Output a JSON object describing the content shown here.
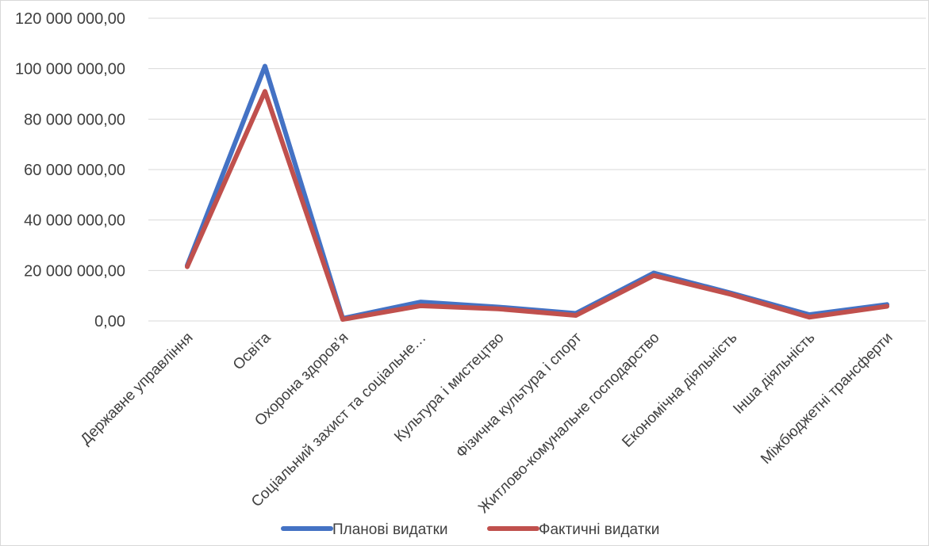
{
  "chart_data": {
    "type": "line",
    "title": "",
    "xlabel": "",
    "ylabel": "",
    "ylim": [
      0,
      120000000
    ],
    "y_ticks": [
      "0,00",
      "20 000 000,00",
      "40 000 000,00",
      "60 000 000,00",
      "80 000 000,00",
      "100 000 000,00",
      "120 000 000,00"
    ],
    "grid": "horizontal",
    "legend_position": "bottom",
    "categories": [
      "Державне управління",
      "Освіта",
      "Охорона здоров’я",
      "Соціальний захист та соціальне…",
      "Культура і мистецтво",
      "Фізична культура і спорт",
      "Житлово-комунальне господарство",
      "Економічна діяльність",
      "Інша діяльність",
      "Міжбюджетні трансферти"
    ],
    "series": [
      {
        "name": "Планові видатки",
        "color": "#4472c4",
        "values": [
          22000000,
          101000000,
          1000000,
          7500000,
          5500000,
          3000000,
          19000000,
          11000000,
          2500000,
          6500000
        ]
      },
      {
        "name": "Фактичні видатки",
        "color": "#c0504d",
        "values": [
          21500000,
          91000000,
          600000,
          6000000,
          4800000,
          2200000,
          18000000,
          10500000,
          1500000,
          5800000
        ]
      }
    ]
  }
}
